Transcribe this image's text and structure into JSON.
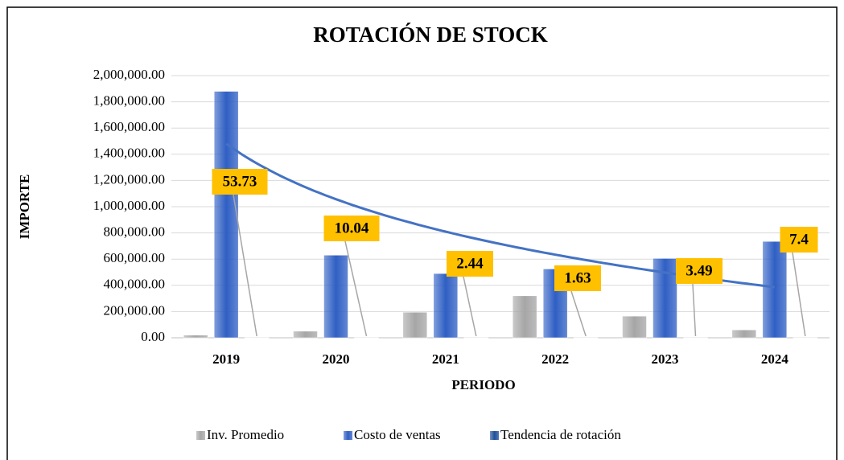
{
  "chart_data": {
    "type": "bar",
    "title": "ROTACIÓN DE STOCK",
    "x_label": "PERIODO",
    "y_label": "IMPORTE",
    "categories": [
      "2019",
      "2020",
      "2021",
      "2022",
      "2023",
      "2024"
    ],
    "series": [
      {
        "name": "Inv. Promedio",
        "color": "#a6a6a6",
        "values": [
          20000,
          50000,
          195000,
          320000,
          165000,
          60000
        ]
      },
      {
        "name": "Costo de ventas",
        "color": "#2f5fc4",
        "values": [
          1880000,
          630000,
          490000,
          525000,
          605000,
          735000
        ]
      },
      {
        "name": "Tendencia de rotación",
        "color": "#1f4e9a",
        "values": [
          53.73,
          10.04,
          2.44,
          1.63,
          3.49,
          7.4
        ]
      }
    ],
    "trendline": {
      "series": 1,
      "type": "logarithmic",
      "color": "#4472c4"
    },
    "ylim": [
      0,
      2000000
    ],
    "yticks": [
      {
        "value": 0,
        "label": "0.00"
      },
      {
        "value": 200000,
        "label": "200,000.00"
      },
      {
        "value": 400000,
        "label": "400,000.00"
      },
      {
        "value": 600000,
        "label": "600,000.00"
      },
      {
        "value": 800000,
        "label": "800,000.00"
      },
      {
        "value": 1000000,
        "label": "1,000,000.00"
      },
      {
        "value": 1200000,
        "label": "1,200,000.00"
      },
      {
        "value": 1400000,
        "label": "1,400,000.00"
      },
      {
        "value": 1600000,
        "label": "1,600,000.00"
      },
      {
        "value": 1800000,
        "label": "1,800,000.00"
      },
      {
        "value": 2000000,
        "label": "2,000,000.00"
      }
    ],
    "grid": true,
    "legend": "bottom"
  }
}
